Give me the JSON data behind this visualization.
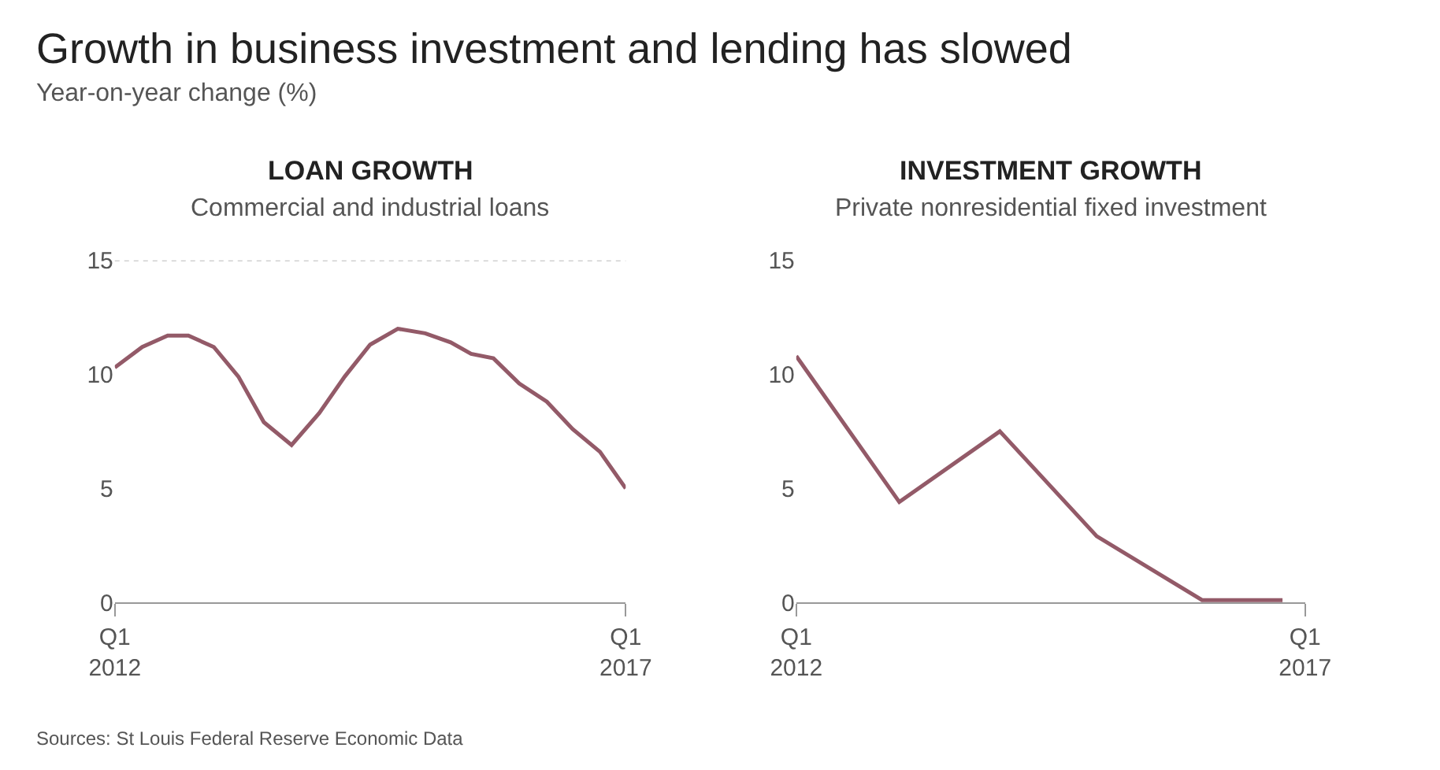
{
  "chart_data": [
    {
      "type": "other",
      "title": "Growth in business investment and lending has slowed",
      "subtitle": "Year-on-year change (%)",
      "annotations": [
        "Sources: St Louis Federal Reserve Economic Data"
      ]
    },
    {
      "type": "line",
      "title": "LOAN GROWTH",
      "subtitle": "Commercial and industrial loans",
      "x": [
        "2012-01-01",
        "2012-04-08",
        "2012-07-08",
        "2012-09-20",
        "2012-12-20",
        "2013-03-18",
        "2013-06-17",
        "2013-09-24",
        "2014-01-01",
        "2014-04-02",
        "2014-07-02",
        "2014-10-09",
        "2015-01-15",
        "2015-04-16",
        "2015-06-28",
        "2015-09-16",
        "2015-12-17",
        "2016-03-25",
        "2016-06-25",
        "2016-10-01",
        "2017-01-01"
      ],
      "series": [
        {
          "color": "#935a68",
          "values": [
            10.3,
            11.2,
            11.7,
            11.7,
            11.2,
            9.9,
            7.9,
            6.9,
            8.3,
            9.9,
            11.3,
            12.0,
            11.8,
            11.4,
            10.9,
            10.7,
            9.6,
            8.8,
            7.6,
            6.6,
            5.0
          ]
        }
      ],
      "xlim": [
        "2012-01-01",
        "2017-01-01"
      ],
      "xticks": [
        {
          "value": "2012-01-01",
          "label": "Q1\n2012"
        },
        {
          "value": "2017-01-01",
          "label": "Q1\n2017"
        }
      ],
      "ylim": [
        0,
        15
      ],
      "yticks": [
        0,
        5,
        10,
        15
      ],
      "marker": "none",
      "line_style": "solid",
      "ref_lines": [
        {
          "axis": "y",
          "value": 15,
          "color": "#bbbbbb",
          "line_style": "dotted"
        }
      ]
    },
    {
      "type": "line",
      "title": "INVESTMENT GROWTH",
      "subtitle": "Private nonresidential fixed investment",
      "x": [
        "2012-01-01",
        "2013-01-05",
        "2014-01-01",
        "2014-12-15",
        "2015-12-28",
        "2016-10-12"
      ],
      "series": [
        {
          "color": "#935a68",
          "values": [
            10.8,
            4.4,
            7.5,
            2.9,
            0.1,
            0.1
          ]
        }
      ],
      "xlim": [
        "2012-01-01",
        "2017-01-01"
      ],
      "xticks": [
        {
          "value": "2012-01-01",
          "label": "Q1\n2012"
        },
        {
          "value": "2017-01-01",
          "label": "Q1\n2017"
        }
      ],
      "ylim": [
        0,
        15
      ],
      "yticks": [
        0,
        5,
        10,
        15
      ],
      "marker": "none",
      "line_style": "solid"
    }
  ]
}
